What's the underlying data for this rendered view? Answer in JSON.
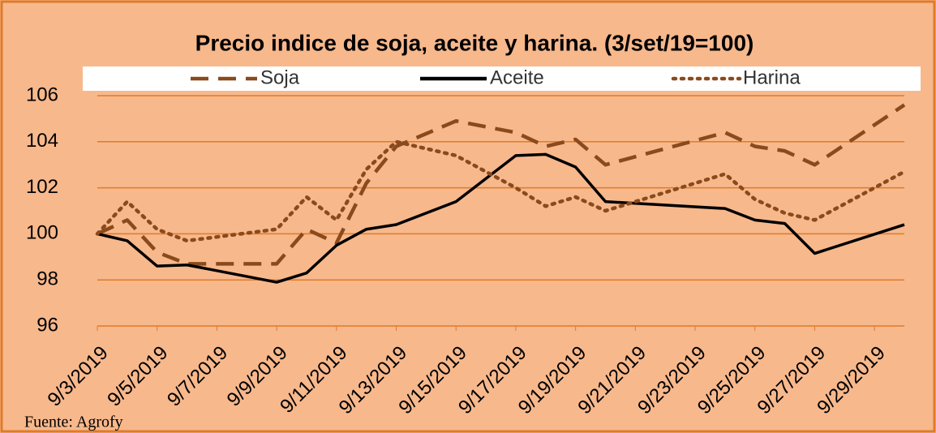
{
  "chart_data": {
    "type": "line",
    "title": "Precio indice de soja, aceite y harina. (3/set/19=100)",
    "source": "Fuente: Agrofy",
    "x": [
      "9/3/2019",
      "9/4/2019",
      "9/5/2019",
      "9/6/2019",
      "9/9/2019",
      "9/10/2019",
      "9/11/2019",
      "9/12/2019",
      "9/13/2019",
      "9/15/2019",
      "9/17/2019",
      "9/18/2019",
      "9/19/2019",
      "9/20/2019",
      "9/24/2019",
      "9/25/2019",
      "9/26/2019",
      "9/27/2019",
      "9/30/2019"
    ],
    "series": [
      {
        "name": "Soja",
        "color": "#8a4a1c",
        "dash": "dashed",
        "values": [
          100,
          100.6,
          99.2,
          98.7,
          98.7,
          100.2,
          99.6,
          102.2,
          103.8,
          104.9,
          104.4,
          103.8,
          104.1,
          103.0,
          104.4,
          103.8,
          103.6,
          103.0,
          105.6
        ]
      },
      {
        "name": "Aceite",
        "color": "#000000",
        "dash": "solid",
        "values": [
          100,
          99.7,
          98.6,
          98.65,
          97.9,
          98.3,
          99.5,
          100.2,
          100.4,
          101.4,
          103.4,
          103.45,
          102.9,
          101.4,
          101.1,
          100.6,
          100.45,
          99.15,
          100.4
        ]
      },
      {
        "name": "Harina",
        "color": "#8a4a1c",
        "dash": "dotted",
        "values": [
          100,
          101.4,
          100.2,
          99.7,
          100.2,
          101.6,
          100.6,
          102.8,
          104.0,
          103.4,
          102.0,
          101.2,
          101.6,
          101.0,
          102.6,
          101.5,
          100.9,
          100.6,
          102.7
        ]
      }
    ],
    "xlim": [
      "9/3/2019",
      "9/30/2019"
    ],
    "xticks": [
      "9/3/2019",
      "9/5/2019",
      "9/7/2019",
      "9/9/2019",
      "9/11/2019",
      "9/13/2019",
      "9/15/2019",
      "9/17/2019",
      "9/19/2019",
      "9/21/2019",
      "9/23/2019",
      "9/25/2019",
      "9/27/2019",
      "9/29/2019"
    ],
    "ylim": [
      96,
      106
    ],
    "yticks": [
      96,
      98,
      100,
      102,
      104,
      106
    ],
    "grid": true,
    "legend": "top"
  }
}
